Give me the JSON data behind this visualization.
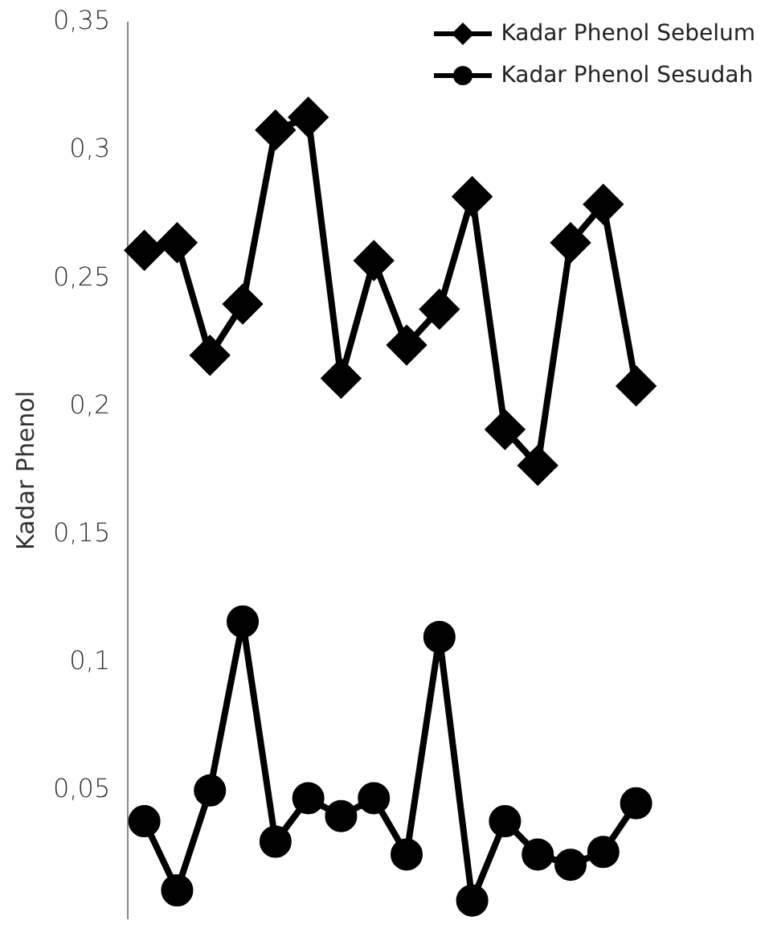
{
  "chart_data": {
    "type": "line",
    "ylabel": "Kadar Phenol",
    "categories": [
      null,
      null,
      null,
      null,
      null,
      null,
      null,
      null,
      null,
      null,
      null,
      null,
      null,
      null,
      null,
      null
    ],
    "series": [
      {
        "name": "Kadar Phenol Sebelum",
        "color": "#000000",
        "marker": "diamond",
        "values": [
          0.261,
          0.264,
          0.22,
          0.24,
          0.308,
          0.313,
          0.211,
          0.257,
          0.224,
          0.238,
          0.282,
          0.191,
          0.177,
          0.264,
          0.279,
          0.208
        ]
      },
      {
        "name": "Kadar Phenol Sesudah",
        "color": "#000000",
        "marker": "circle",
        "values": [
          0.038,
          0.011,
          0.05,
          0.116,
          0.03,
          0.047,
          0.04,
          0.047,
          0.025,
          0.11,
          0.007,
          0.038,
          0.025,
          0.021,
          0.026,
          0.045
        ]
      }
    ],
    "ylim": [
      0,
      0.35
    ],
    "yticks": [
      {
        "value": 0.05,
        "label": "0,05"
      },
      {
        "value": 0.1,
        "label": "0,1"
      },
      {
        "value": 0.15,
        "label": "0,15"
      },
      {
        "value": 0.2,
        "label": "0,2"
      },
      {
        "value": 0.25,
        "label": "0,25"
      },
      {
        "value": 0.3,
        "label": "0,3"
      },
      {
        "value": 0.35,
        "label": "0,35"
      }
    ],
    "grid": false,
    "legend": "top right",
    "tick_labels": "y",
    "line_style": "solid"
  }
}
